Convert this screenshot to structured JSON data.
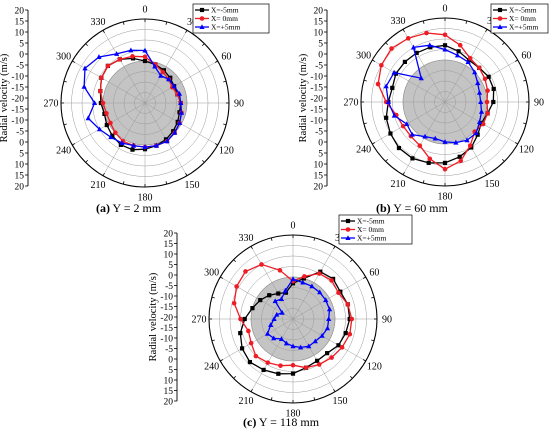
{
  "chart_data": [
    {
      "type": "polar-line",
      "caption_letter": "(a)",
      "caption_text": " Y = 2 mm",
      "ylabel": "Radial velocity (m/s)",
      "r_ticks": [
        "20",
        "15",
        "10",
        "5",
        "0",
        "-5",
        "-10",
        "-15",
        "-20",
        "-15",
        "-10",
        "-5",
        "0",
        "5",
        "10",
        "15",
        "20"
      ],
      "angle_labels": [
        "0",
        "30",
        "60",
        "90",
        "120",
        "150",
        "180",
        "210",
        "240",
        "270",
        "300",
        "330"
      ],
      "rlim": [
        -20,
        20
      ],
      "grid": true,
      "legend_position": "top-right",
      "theta": [
        0,
        15,
        30,
        45,
        60,
        75,
        90,
        105,
        120,
        135,
        150,
        165,
        180,
        195,
        210,
        225,
        240,
        255,
        270,
        285,
        300,
        315,
        330,
        345
      ],
      "series": [
        {
          "name": "X=-5mm",
          "color": "#000000",
          "marker": "square",
          "values": [
            0,
            -1,
            -2,
            -3,
            -4,
            -4,
            -3,
            -3,
            -2,
            -1,
            0,
            1,
            2,
            3,
            3,
            2,
            1,
            0,
            1,
            2,
            4,
            5,
            4,
            2
          ]
        },
        {
          "name": "X= 0mm",
          "color": "#ee1c24",
          "marker": "circle",
          "values": [
            2,
            -1,
            -3,
            -4,
            -5,
            -4,
            -3,
            -2,
            -1,
            0,
            1,
            1,
            1,
            1,
            1,
            0,
            -1,
            -1,
            0,
            2,
            4,
            5,
            4,
            3
          ]
        },
        {
          "name": "X=+5mm",
          "color": "#0000ff",
          "marker": "triangle",
          "values": [
            5,
            -2,
            -5,
            -4,
            -4,
            -3,
            -3,
            -2,
            -1,
            0,
            1,
            1,
            1,
            1,
            2,
            3,
            5,
            8,
            4,
            10,
            13,
            11,
            7,
            6
          ]
        }
      ]
    },
    {
      "type": "polar-line",
      "caption_letter": "(b)",
      "caption_text": " Y = 60 mm",
      "ylabel": "Radial velocity (m/s)",
      "r_ticks": [
        "20",
        "15",
        "10",
        "5",
        "0",
        "-5",
        "-10",
        "-15",
        "-20",
        "-15",
        "-10",
        "-5",
        "0",
        "5",
        "10",
        "15",
        "20"
      ],
      "angle_labels": [
        "0",
        "30",
        "60",
        "90",
        "120",
        "150",
        "180",
        "210",
        "240",
        "270",
        "300",
        "330"
      ],
      "rlim": [
        -20,
        20
      ],
      "grid": true,
      "legend_position": "top-right",
      "theta": [
        0,
        15,
        30,
        45,
        60,
        75,
        90,
        105,
        120,
        135,
        150,
        165,
        180,
        195,
        210,
        225,
        240,
        255,
        270,
        285,
        300,
        315,
        330,
        345
      ],
      "series": [
        {
          "name": "X=-5mm",
          "color": "#000000",
          "marker": "square",
          "values": [
            7,
            5,
            3,
            3,
            4,
            4,
            3,
            1,
            0,
            2,
            5,
            7,
            9,
            10,
            11,
            11,
            10,
            9,
            7,
            6,
            7,
            7,
            7,
            7
          ]
        },
        {
          "name": "X= 0mm",
          "color": "#ee1c24",
          "marker": "circle",
          "values": [
            12,
            8,
            4,
            3,
            2,
            1,
            0,
            1,
            1,
            0,
            4,
            9,
            12,
            8,
            4,
            3,
            3,
            4,
            8,
            13,
            15,
            16,
            15,
            14
          ]
        },
        {
          "name": "X=+5mm",
          "color": "#0000ff",
          "marker": "triangle",
          "values": [
            5,
            3,
            2,
            0,
            -2,
            -3,
            -3,
            -2,
            -1,
            1,
            1,
            0,
            -1,
            -2,
            -1,
            2,
            1,
            5,
            7,
            9,
            8,
            -4,
            10,
            8
          ]
        }
      ]
    },
    {
      "type": "polar-line",
      "caption_letter": "(c)",
      "caption_text": " Y = 118 mm",
      "ylabel": "Radial velocity (m/s)",
      "r_ticks": [
        "20",
        "15",
        "10",
        "5",
        "0",
        "-5",
        "-10",
        "-15",
        "-20",
        "-15",
        "-10",
        "-5",
        "0",
        "5",
        "10",
        "15",
        "20"
      ],
      "angle_labels": [
        "0",
        "30",
        "60",
        "90",
        "120",
        "150",
        "180",
        "210",
        "240",
        "270",
        "300",
        "330"
      ],
      "rlim": [
        -20,
        20
      ],
      "grid": true,
      "legend_position": "top-right",
      "theta": [
        0,
        15,
        30,
        45,
        60,
        75,
        90,
        105,
        120,
        135,
        150,
        165,
        180,
        195,
        210,
        225,
        240,
        255,
        270,
        285,
        300,
        315,
        330,
        345
      ],
      "series": [
        {
          "name": "X=-5mm",
          "color": "#000000",
          "marker": "square",
          "values": [
            -3,
            0,
            6,
            7,
            6,
            7,
            7,
            6,
            5,
            3,
            3,
            4,
            6,
            7,
            8,
            9,
            8,
            6,
            3,
            0,
            -2,
            -4,
            -6,
            -7
          ]
        },
        {
          "name": "X= 0mm",
          "color": "#ee1c24",
          "marker": "circle",
          "values": [
            -2,
            1,
            5,
            6,
            5,
            7,
            8,
            8,
            7,
            6,
            5,
            4,
            2,
            3,
            4,
            5,
            3,
            2,
            5,
            9,
            11,
            12,
            10,
            4
          ]
        },
        {
          "name": "X=+5mm",
          "color": "#0000ff",
          "marker": "triangle",
          "values": [
            -1,
            -2,
            -2,
            -2,
            -2,
            -2,
            -3,
            -3,
            -4,
            -5,
            -5,
            -6,
            -7,
            -8,
            -9,
            -7,
            -6,
            -9,
            -11,
            -12,
            -14,
            -8,
            -9,
            -6
          ]
        }
      ]
    }
  ]
}
